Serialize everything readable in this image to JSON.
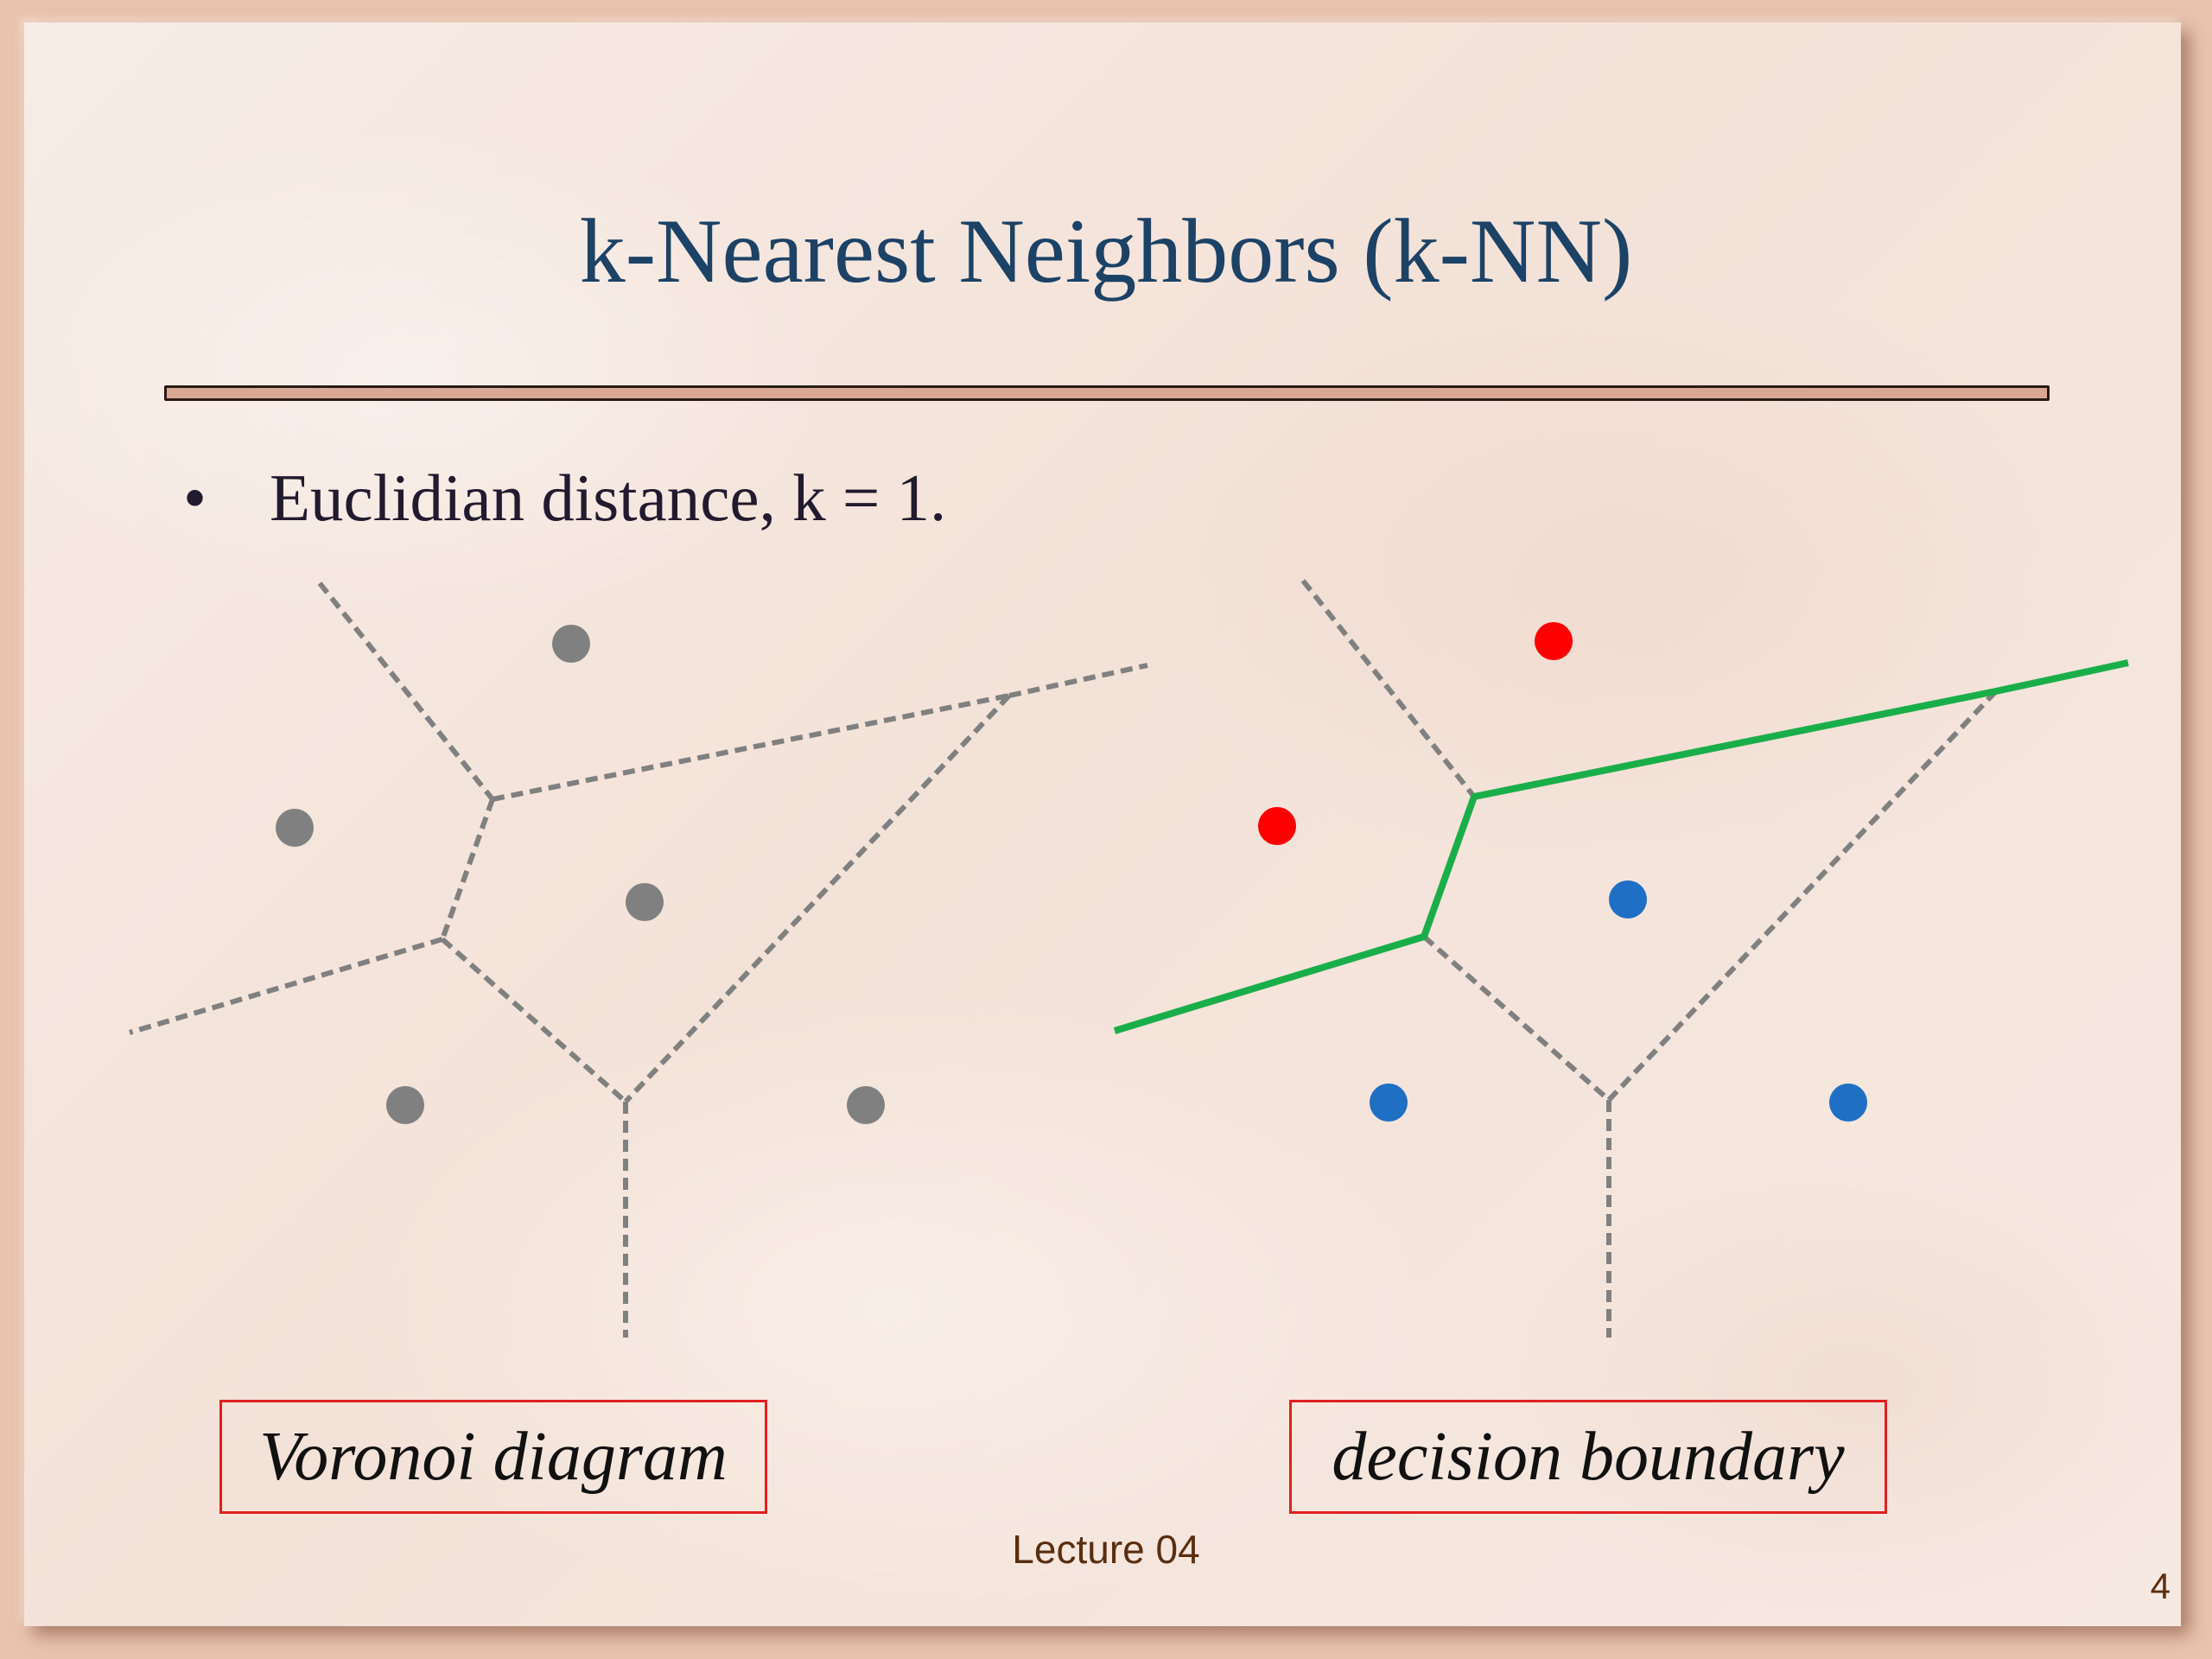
{
  "slide": {
    "title": "k-Nearest Neighbors (k-NN)",
    "bullet_symbol": "•",
    "bullet_text": "Euclidian distance, k = 1.",
    "captions": {
      "left": "Voronoi diagram",
      "right": "decision boundary"
    },
    "footer": "Lecture 04",
    "page_number": "4"
  },
  "colors": {
    "title": "#1c4266",
    "voronoi_point": "#808080",
    "voronoi_edge": "#808080",
    "class_red": "#ff0000",
    "class_blue": "#1f6fc4",
    "boundary": "#1aae4a",
    "caption_border": "#e02020"
  },
  "diagrams": {
    "voronoi": {
      "point_classes": [
        "gray",
        "gray",
        "gray",
        "gray",
        "gray"
      ]
    },
    "decision": {
      "point_classes": [
        "red",
        "red",
        "blue",
        "blue",
        "blue"
      ]
    }
  }
}
